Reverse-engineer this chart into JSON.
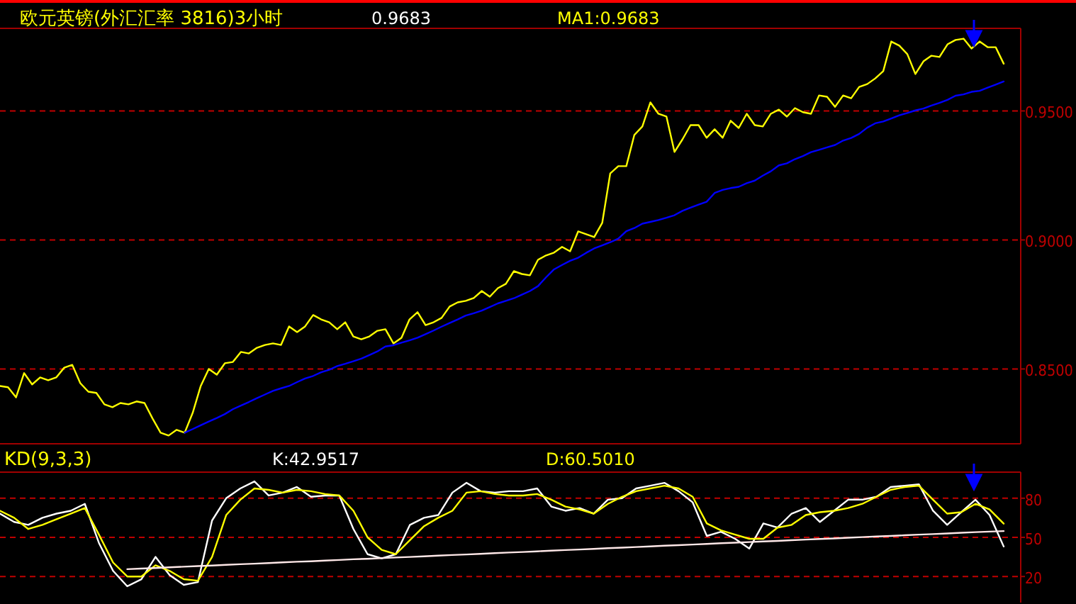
{
  "chart_data": [
    {
      "type": "line",
      "title": "欧元英镑(外汇汇率 3816)3小时",
      "annotations": [
        "0.9683"
      ],
      "categories": [
        null,
        null,
        null,
        null,
        null,
        null,
        null,
        null,
        null,
        null,
        null,
        null,
        null,
        null,
        null,
        null,
        null,
        null,
        null,
        null,
        null,
        null,
        null,
        null,
        null,
        null,
        null,
        null,
        null,
        null,
        null,
        null,
        null,
        null,
        null,
        null,
        null,
        null,
        null,
        null,
        null,
        null,
        null,
        null,
        null,
        null,
        null,
        null,
        null,
        null,
        null,
        null,
        null,
        null,
        null,
        null,
        null,
        null,
        null,
        null,
        null,
        null,
        null,
        null,
        null,
        null,
        null,
        null,
        null,
        null,
        null,
        null,
        null,
        null,
        null,
        null,
        null,
        null,
        null,
        null,
        null,
        null,
        null,
        null,
        null,
        null,
        null,
        null,
        null,
        null,
        null,
        null,
        null,
        null,
        null,
        null,
        null,
        null,
        null,
        null,
        null,
        null,
        null,
        null,
        null,
        null,
        null,
        null,
        null,
        null,
        null,
        null,
        null,
        null,
        null,
        null,
        null,
        null,
        null,
        null,
        null,
        null,
        null,
        null,
        null,
        null
      ],
      "series": [
        {
          "name": "MA1:0.9683",
          "color": "#ffff00",
          "values": [
            0.8434,
            0.8429,
            0.839,
            0.8484,
            0.844,
            0.8467,
            0.8456,
            0.8467,
            0.8505,
            0.8516,
            0.8445,
            0.8412,
            0.8407,
            0.8363,
            0.8352,
            0.8368,
            0.8363,
            0.8374,
            0.8368,
            0.8308,
            0.8253,
            0.8242,
            0.8264,
            0.8253,
            0.833,
            0.8434,
            0.85,
            0.8478,
            0.8522,
            0.8527,
            0.8566,
            0.856,
            0.8582,
            0.8593,
            0.8599,
            0.8593,
            0.8665,
            0.8643,
            0.8665,
            0.8709,
            0.8692,
            0.8681,
            0.8654,
            0.8681,
            0.8626,
            0.8615,
            0.8626,
            0.8648,
            0.8654,
            0.8599,
            0.8621,
            0.8692,
            0.872,
            0.867,
            0.8681,
            0.8698,
            0.8742,
            0.8758,
            0.8764,
            0.8775,
            0.8802,
            0.878,
            0.8813,
            0.883,
            0.8879,
            0.8868,
            0.8863,
            0.8923,
            0.894,
            0.8951,
            0.8973,
            0.8956,
            0.9033,
            0.9022,
            0.9011,
            0.9066,
            0.9258,
            0.9286,
            0.9286,
            0.9407,
            0.944,
            0.9533,
            0.9489,
            0.9478,
            0.9341,
            0.939,
            0.9445,
            0.9445,
            0.9396,
            0.9429,
            0.9396,
            0.9462,
            0.9434,
            0.9489,
            0.9445,
            0.944,
            0.9489,
            0.9505,
            0.9478,
            0.9511,
            0.9495,
            0.9489,
            0.956,
            0.9555,
            0.9516,
            0.956,
            0.9549,
            0.9593,
            0.9604,
            0.9626,
            0.9654,
            0.9769,
            0.9753,
            0.972,
            0.9643,
            0.9692,
            0.9714,
            0.9709,
            0.9758,
            0.9775,
            0.978,
            0.9742,
            0.9769,
            0.9747,
            0.9747,
            0.9683
          ]
        },
        {
          "color": "#0000ff",
          "values": [
            null,
            null,
            null,
            null,
            null,
            null,
            null,
            null,
            null,
            null,
            null,
            null,
            null,
            null,
            null,
            null,
            null,
            null,
            null,
            null,
            null,
            null,
            null,
            0.8253,
            0.8267,
            0.8282,
            0.8296,
            0.831,
            0.8325,
            0.8344,
            0.8358,
            0.8372,
            0.8387,
            0.8401,
            0.8415,
            0.8425,
            0.8434,
            0.8449,
            0.8463,
            0.8473,
            0.8487,
            0.8497,
            0.8511,
            0.852,
            0.853,
            0.854,
            0.8554,
            0.8568,
            0.8587,
            0.8592,
            0.8602,
            0.8611,
            0.8621,
            0.8635,
            0.8649,
            0.8664,
            0.8678,
            0.8692,
            0.8707,
            0.8716,
            0.8726,
            0.874,
            0.8754,
            0.8764,
            0.8774,
            0.8788,
            0.8802,
            0.8821,
            0.8855,
            0.8886,
            0.8903,
            0.8919,
            0.8931,
            0.895,
            0.8967,
            0.8979,
            0.8991,
            0.9005,
            0.9034,
            0.9046,
            0.9063,
            0.907,
            0.9077,
            0.9086,
            0.9096,
            0.9113,
            0.9125,
            0.9137,
            0.9148,
            0.9182,
            0.9194,
            0.9201,
            0.9206,
            0.922,
            0.923,
            0.9249,
            0.9266,
            0.9289,
            0.9297,
            0.9313,
            0.9325,
            0.934,
            0.9349,
            0.9359,
            0.9368,
            0.9385,
            0.9395,
            0.9411,
            0.9435,
            0.9452,
            0.9459,
            0.9471,
            0.9483,
            0.9492,
            0.9502,
            0.9509,
            0.9521,
            0.9531,
            0.9543,
            0.9559,
            0.9564,
            0.9574,
            0.9578,
            0.959,
            0.9602,
            0.9614
          ]
        }
      ],
      "ylim": [
        0.821,
        0.982
      ],
      "yticks": [
        {
          "value": 0.85,
          "label": "0.8500"
        },
        {
          "value": 0.9,
          "label": "0.9000"
        },
        {
          "value": 0.95,
          "label": "0.9500"
        }
      ],
      "grid": "y",
      "legend": "top"
    },
    {
      "type": "line",
      "title": "KD(9,3,3)",
      "categories": [
        null,
        null,
        null,
        null,
        null,
        null,
        null,
        null,
        null,
        null,
        null,
        null,
        null,
        null,
        null,
        null,
        null,
        null,
        null,
        null,
        null,
        null,
        null,
        null,
        null,
        null,
        null,
        null,
        null,
        null,
        null,
        null,
        null,
        null,
        null,
        null,
        null,
        null,
        null,
        null,
        null,
        null,
        null,
        null,
        null,
        null,
        null,
        null,
        null,
        null,
        null,
        null,
        null,
        null,
        null,
        null,
        null,
        null,
        null,
        null,
        null,
        null,
        null,
        null,
        null,
        null,
        null,
        null,
        null,
        null,
        null,
        null
      ],
      "series": [
        {
          "name": "K:42.9517",
          "color": "#ffffff",
          "values": [
            68.2,
            61.8,
            59.6,
            65.0,
            68.2,
            70.4,
            75.7,
            45.7,
            24.3,
            12.5,
            17.9,
            35.0,
            21.1,
            13.6,
            15.7,
            62.9,
            80.0,
            87.5,
            92.9,
            82.1,
            84.3,
            88.6,
            81.1,
            82.1,
            82.1,
            56.4,
            37.1,
            33.9,
            37.1,
            59.6,
            65.0,
            67.1,
            84.3,
            91.8,
            85.4,
            84.3,
            85.4,
            85.4,
            87.5,
            73.6,
            70.4,
            72.5,
            68.2,
            78.9,
            80.0,
            87.5,
            89.6,
            91.8,
            85.4,
            76.8,
            51.1,
            54.3,
            48.9,
            41.4,
            60.7,
            57.5,
            68.2,
            72.5,
            61.8,
            70.4,
            78.9,
            78.9,
            81.1,
            88.6,
            89.6,
            90.7,
            70.4,
            59.6,
            69.3,
            78.9,
            67.1,
            43.0
          ]
        },
        {
          "name": "D:60.5010",
          "color": "#ffff00",
          "values": [
            70.4,
            65.0,
            56.4,
            59.6,
            63.9,
            68.2,
            72.5,
            52.1,
            30.7,
            20.0,
            20.0,
            28.6,
            24.3,
            17.9,
            16.8,
            35.0,
            67.1,
            78.9,
            87.5,
            86.4,
            84.3,
            86.4,
            85.4,
            83.2,
            82.1,
            70.4,
            50.0,
            40.4,
            37.1,
            47.9,
            58.6,
            65.0,
            70.4,
            84.3,
            85.4,
            83.2,
            82.1,
            82.1,
            83.2,
            78.9,
            73.6,
            71.4,
            68.2,
            75.7,
            81.1,
            85.4,
            87.5,
            89.6,
            87.5,
            81.1,
            60.7,
            55.4,
            52.1,
            48.9,
            48.9,
            57.5,
            59.6,
            67.1,
            69.3,
            70.4,
            72.5,
            75.7,
            81.1,
            86.4,
            88.6,
            89.6,
            78.9,
            68.2,
            69.3,
            75.7,
            71.4,
            60.5
          ]
        },
        {
          "color": "#ffe8e8",
          "values": [
            null,
            null,
            null,
            null,
            null,
            null,
            null,
            null,
            null,
            25.6,
            26.1,
            26.5,
            27.0,
            27.5,
            28.0,
            28.4,
            28.9,
            29.4,
            29.8,
            30.3,
            30.8,
            31.3,
            31.7,
            32.2,
            32.7,
            33.2,
            33.6,
            34.1,
            34.6,
            35.0,
            35.5,
            36.0,
            36.5,
            36.9,
            37.4,
            37.9,
            38.4,
            38.8,
            39.3,
            39.8,
            40.3,
            40.7,
            41.2,
            41.7,
            42.1,
            42.6,
            43.1,
            43.6,
            44.0,
            44.5,
            45.0,
            45.5,
            45.9,
            46.4,
            46.9,
            47.3,
            47.8,
            48.3,
            48.8,
            49.2,
            49.7,
            50.2,
            50.7,
            51.1,
            51.6,
            52.1,
            52.5,
            53.0,
            53.5,
            54.0,
            54.4,
            54.8
          ]
        }
      ],
      "ylim": [
        0,
        100
      ],
      "yticks": [
        20,
        50,
        80
      ],
      "grid": "y",
      "legend": "top"
    }
  ]
}
